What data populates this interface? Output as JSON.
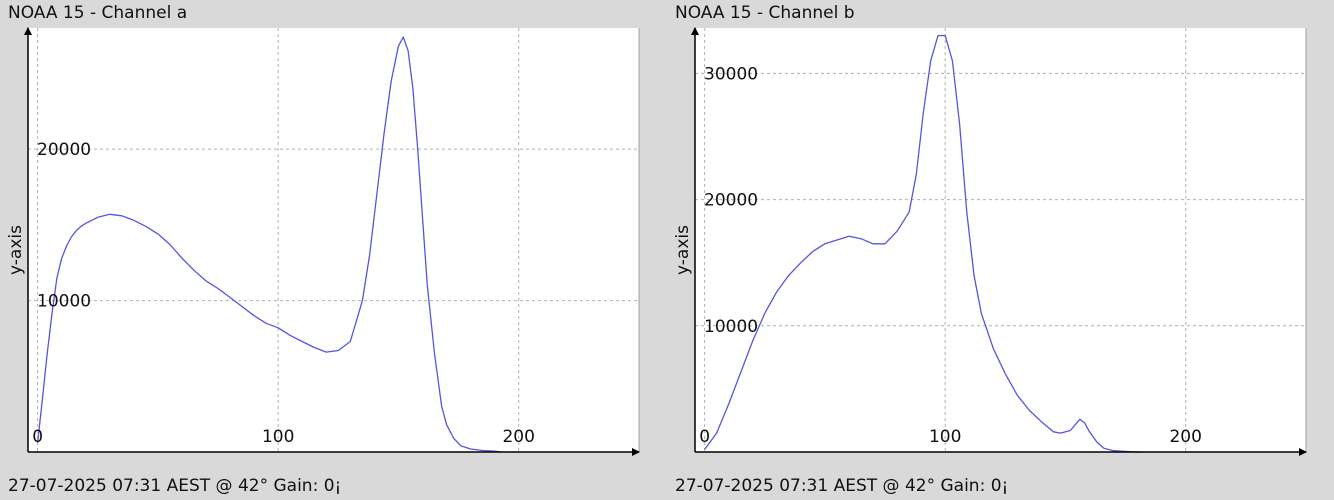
{
  "panels": [
    {
      "title": "NOAA 15 - Channel a",
      "footer": "27-07-2025 07:31 AEST @ 42° Gain: 0¡"
    },
    {
      "title": "NOAA 15 - Channel b",
      "footer": "27-07-2025 07:31 AEST @ 42° Gain: 0¡"
    }
  ],
  "colors": {
    "plot_bg": "#ffffff",
    "line": "#5555dd",
    "grid": "#b0b0b0",
    "axis": "#000000",
    "frame_bg": "#d9d9d9"
  },
  "chart_data": [
    {
      "type": "line",
      "title": "NOAA 15 - Channel a",
      "xlabel": "",
      "ylabel": "y-axis",
      "xlim": [
        -4,
        250
      ],
      "ylim": [
        0,
        28000
      ],
      "x_ticks": [
        0,
        100,
        200
      ],
      "x_tick_labels": [
        "0",
        "100",
        "200"
      ],
      "y_ticks": [
        10000,
        20000
      ],
      "y_tick_labels": [
        "10000",
        "20000"
      ],
      "grid": true,
      "legend": "none",
      "series": [
        {
          "x": [
            0,
            2,
            4,
            6,
            8,
            10,
            12,
            14,
            16,
            18,
            20,
            25,
            30,
            35,
            40,
            45,
            50,
            55,
            60,
            65,
            70,
            75,
            80,
            85,
            90,
            95,
            100,
            105,
            110,
            115,
            120,
            125,
            130,
            135,
            138,
            141,
            144,
            147,
            150,
            152,
            154,
            156,
            158,
            160,
            162,
            165,
            168,
            170,
            173,
            176,
            180,
            185,
            190,
            193
          ],
          "y": [
            600,
            3500,
            6500,
            9200,
            11500,
            12800,
            13600,
            14200,
            14600,
            14900,
            15100,
            15500,
            15700,
            15600,
            15300,
            14900,
            14400,
            13700,
            12800,
            12000,
            11300,
            10800,
            10200,
            9600,
            9000,
            8500,
            8200,
            7700,
            7300,
            6900,
            6600,
            6700,
            7300,
            10000,
            13000,
            17000,
            21000,
            24500,
            26800,
            27400,
            26500,
            24000,
            20000,
            15500,
            11000,
            6500,
            3000,
            1800,
            900,
            400,
            200,
            100,
            50,
            0
          ]
        }
      ]
    },
    {
      "type": "line",
      "title": "NOAA 15 - Channel b",
      "xlabel": "",
      "ylabel": "y-axis",
      "xlim": [
        -4,
        250
      ],
      "ylim": [
        0,
        33600
      ],
      "x_ticks": [
        0,
        100,
        200
      ],
      "x_tick_labels": [
        "0",
        "100",
        "200"
      ],
      "y_ticks": [
        10000,
        20000,
        30000
      ],
      "y_tick_labels": [
        "10000",
        "20000",
        "30000"
      ],
      "grid": true,
      "legend": "none",
      "series": [
        {
          "x": [
            0,
            5,
            10,
            15,
            20,
            25,
            30,
            35,
            40,
            45,
            50,
            55,
            60,
            65,
            70,
            75,
            80,
            85,
            88,
            91,
            94,
            97,
            100,
            103,
            106,
            109,
            112,
            115,
            120,
            125,
            130,
            135,
            140,
            145,
            148,
            152,
            156,
            158,
            160,
            163,
            166,
            170,
            175,
            180,
            182
          ],
          "y": [
            200,
            1500,
            3800,
            6300,
            8800,
            11000,
            12700,
            14000,
            15000,
            15900,
            16500,
            16800,
            17100,
            16900,
            16500,
            16500,
            17500,
            19000,
            22000,
            27000,
            31000,
            33000,
            33000,
            31000,
            26000,
            19000,
            14000,
            11000,
            8200,
            6200,
            4500,
            3300,
            2400,
            1600,
            1500,
            1700,
            2600,
            2300,
            1600,
            800,
            300,
            100,
            50,
            0,
            0
          ]
        }
      ]
    }
  ]
}
